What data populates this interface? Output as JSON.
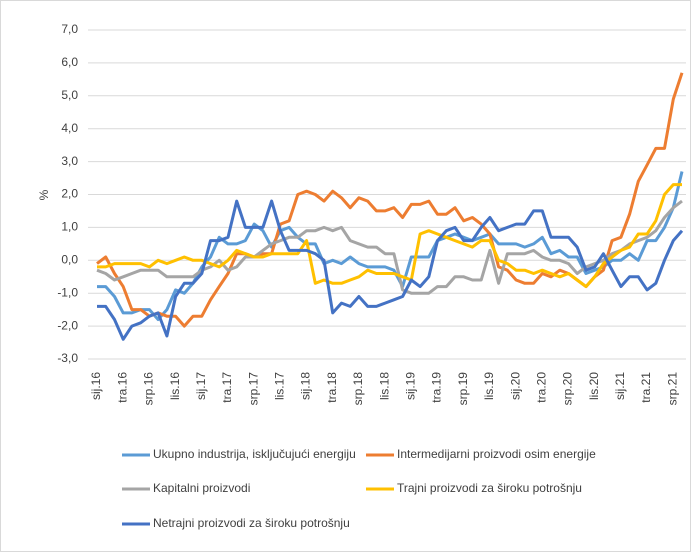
{
  "chart_data": {
    "type": "line",
    "y_label": "%",
    "categories": [
      "sij.16",
      null,
      null,
      "tra.16",
      null,
      null,
      "srp.16",
      null,
      null,
      "lis.16",
      null,
      null,
      "sij.17",
      null,
      null,
      "tra.17",
      null,
      null,
      "srp.17",
      null,
      null,
      "lis.17",
      null,
      null,
      "sij.18",
      null,
      null,
      "tra.18",
      null,
      null,
      "srp.18",
      null,
      null,
      "lis.18",
      null,
      null,
      "sij.19",
      null,
      null,
      "tra.19",
      null,
      null,
      "srp.19",
      null,
      null,
      "lis.19",
      null,
      null,
      "sij.20",
      null,
      null,
      "tra.20",
      null,
      null,
      "srp.20",
      null,
      null,
      "lis.20",
      null,
      null,
      "sij.21",
      null,
      null,
      "tra.21",
      null,
      null,
      "srp.21",
      null
    ],
    "ylim": [
      -3,
      7
    ],
    "yticks": [
      {
        "value": -3,
        "label": "-3,0"
      },
      {
        "value": -2,
        "label": "-2,0"
      },
      {
        "value": -1,
        "label": "-1,0"
      },
      {
        "value": 0,
        "label": "0,0"
      },
      {
        "value": 1,
        "label": "1,0"
      },
      {
        "value": 2,
        "label": "2,0"
      },
      {
        "value": 3,
        "label": "3,0"
      },
      {
        "value": 4,
        "label": "4,0"
      },
      {
        "value": 5,
        "label": "5,0"
      },
      {
        "value": 6,
        "label": "6,0"
      },
      {
        "value": 7,
        "label": "7,0"
      }
    ],
    "grid": true,
    "legend": "bottom",
    "series": [
      {
        "name": "Ukupno industrija, isključujući energiju",
        "color": "#5b9bd5",
        "values": [
          -0.8,
          -0.8,
          -1.1,
          -1.6,
          -1.6,
          -1.5,
          -1.5,
          -1.8,
          -1.5,
          -0.9,
          -1.0,
          -0.7,
          -0.2,
          0.1,
          0.7,
          0.5,
          0.5,
          0.6,
          1.1,
          0.9,
          0.4,
          0.9,
          1.0,
          0.7,
          0.5,
          0.5,
          -0.1,
          0.0,
          -0.1,
          0.1,
          -0.1,
          -0.2,
          -0.2,
          -0.2,
          -0.3,
          -0.8,
          0.1,
          0.1,
          0.1,
          0.6,
          0.7,
          0.8,
          0.7,
          0.6,
          0.7,
          0.8,
          0.5,
          0.5,
          0.5,
          0.4,
          0.5,
          0.7,
          0.2,
          0.3,
          0.1,
          0.1,
          -0.4,
          -0.3,
          -0.2,
          0.0,
          0.0,
          0.2,
          0.0,
          0.6,
          0.6,
          1.0,
          1.6,
          2.7
        ]
      },
      {
        "name": "Intermedijarni proizvodi osim energije",
        "color": "#ed7d31",
        "values": [
          -0.1,
          0.1,
          -0.4,
          -0.8,
          -1.5,
          -1.5,
          -1.7,
          -1.6,
          -1.7,
          -1.7,
          -2.0,
          -1.7,
          -1.7,
          -1.2,
          -0.8,
          -0.4,
          0.2,
          0.2,
          0.1,
          0.2,
          0.2,
          1.1,
          1.2,
          2.0,
          2.1,
          2.0,
          1.8,
          2.1,
          1.9,
          1.6,
          1.9,
          1.8,
          1.5,
          1.5,
          1.6,
          1.3,
          1.7,
          1.7,
          1.8,
          1.4,
          1.4,
          1.6,
          1.2,
          1.3,
          1.1,
          0.8,
          -0.2,
          -0.3,
          -0.6,
          -0.7,
          -0.7,
          -0.4,
          -0.5,
          -0.3,
          -0.4,
          -0.6,
          -0.8,
          -0.5,
          -0.3,
          0.6,
          0.7,
          1.4,
          2.4,
          2.9,
          3.4,
          3.4,
          4.9,
          5.7
        ]
      },
      {
        "name": "Kapitalni proizvodi",
        "color": "#a5a5a5",
        "values": [
          -0.3,
          -0.4,
          -0.6,
          -0.5,
          -0.4,
          -0.3,
          -0.3,
          -0.3,
          -0.5,
          -0.5,
          -0.5,
          -0.5,
          -0.3,
          -0.2,
          0.0,
          -0.3,
          -0.2,
          0.1,
          0.1,
          0.3,
          0.5,
          0.6,
          0.7,
          0.7,
          0.9,
          0.9,
          1.0,
          0.9,
          1.0,
          0.6,
          0.5,
          0.4,
          0.4,
          0.2,
          0.2,
          -0.9,
          -1.0,
          -1.0,
          -1.0,
          -0.8,
          -0.8,
          -0.5,
          -0.5,
          -0.6,
          -0.6,
          0.3,
          -0.7,
          0.2,
          0.2,
          0.2,
          0.3,
          0.1,
          0.0,
          0.0,
          -0.1,
          -0.4,
          -0.2,
          -0.1,
          0.0,
          0.2,
          0.3,
          0.5,
          0.6,
          0.7,
          0.9,
          1.3,
          1.6,
          1.8
        ]
      },
      {
        "name": "Trajni proizvodi za široku potrošnju",
        "color": "#ffc000",
        "values": [
          -0.2,
          -0.2,
          -0.1,
          -0.1,
          -0.1,
          -0.1,
          -0.2,
          0.0,
          -0.1,
          0.0,
          0.1,
          0.0,
          0.0,
          -0.1,
          -0.2,
          0.0,
          0.3,
          0.2,
          0.1,
          0.1,
          0.2,
          0.2,
          0.2,
          0.2,
          0.6,
          -0.7,
          -0.6,
          -0.7,
          -0.7,
          -0.6,
          -0.5,
          -0.3,
          -0.4,
          -0.4,
          -0.4,
          -0.5,
          -0.6,
          0.8,
          0.9,
          0.8,
          0.7,
          0.6,
          0.5,
          0.4,
          0.6,
          0.6,
          0.0,
          -0.1,
          -0.3,
          -0.3,
          -0.4,
          -0.3,
          -0.4,
          -0.5,
          -0.4,
          -0.6,
          -0.8,
          -0.5,
          -0.1,
          0.1,
          0.3,
          0.4,
          0.8,
          0.8,
          1.2,
          2.0,
          2.3,
          2.3
        ]
      },
      {
        "name": "Netrajni proizvodi za široku potrošnju",
        "color": "#4472c4",
        "values": [
          -1.4,
          -1.4,
          -1.8,
          -2.4,
          -2.0,
          -1.9,
          -1.7,
          -1.6,
          -2.3,
          -1.1,
          -0.7,
          -0.7,
          -0.4,
          0.6,
          0.6,
          0.7,
          1.8,
          1.0,
          1.0,
          1.0,
          1.8,
          0.9,
          0.3,
          0.3,
          0.3,
          0.2,
          0.0,
          -1.6,
          -1.3,
          -1.4,
          -1.1,
          -1.4,
          -1.4,
          -1.3,
          -1.2,
          -1.1,
          -0.6,
          -0.8,
          -0.5,
          0.6,
          0.9,
          1.0,
          0.6,
          0.6,
          1.0,
          1.3,
          0.9,
          1.0,
          1.1,
          1.1,
          1.5,
          1.5,
          0.7,
          0.7,
          0.7,
          0.4,
          -0.3,
          -0.2,
          0.2,
          -0.3,
          -0.8,
          -0.5,
          -0.5,
          -0.9,
          -0.7,
          0.0,
          0.6,
          0.9
        ]
      }
    ]
  }
}
